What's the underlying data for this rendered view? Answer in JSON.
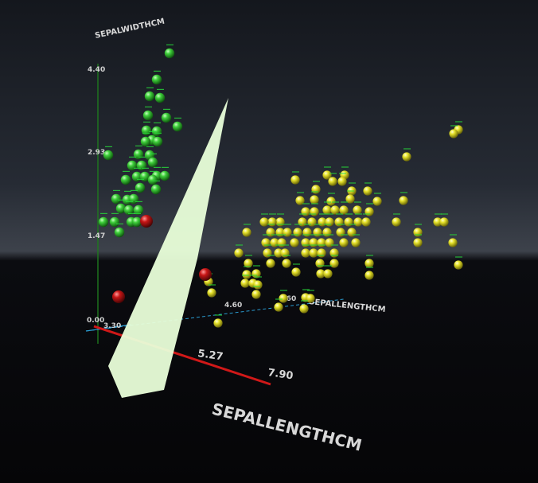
{
  "chart_data": {
    "type": "scatter",
    "axes": {
      "y_label": "SEPALWIDTHCM",
      "y_ticks": [
        "0.00",
        "1.47",
        "2.93",
        "4.40"
      ],
      "x_label": "SEPALLENGTHCM",
      "x_ticks": [
        "5.27",
        "7.90"
      ],
      "z_label": "SEPALLENGTHCM",
      "z_ticks": [
        "3.30",
        "4.60",
        "6.60"
      ]
    },
    "colors": {
      "green": "#3ecf3a",
      "yellow": "#e6e22a",
      "red": "#c81616",
      "plane": "#e9ffd9",
      "axis_red": "#d01818",
      "axis_green": "#1e7a1e",
      "axis_blue": "#2a9bd0",
      "label_green": "#27d83a"
    },
    "series": [
      {
        "color": "green",
        "points": [
          [
            213,
            67
          ],
          [
            197,
            100
          ],
          [
            188,
            121
          ],
          [
            201,
            123
          ],
          [
            186,
            145
          ],
          [
            209,
            148
          ],
          [
            223,
            159
          ],
          [
            184,
            164
          ],
          [
            197,
            165
          ],
          [
            191,
            176
          ],
          [
            183,
            178
          ],
          [
            198,
            178
          ],
          [
            136,
            195
          ],
          [
            174,
            194
          ],
          [
            188,
            195
          ],
          [
            192,
            204
          ],
          [
            166,
            208
          ],
          [
            178,
            208
          ],
          [
            172,
            222
          ],
          [
            182,
            222
          ],
          [
            197,
            221
          ],
          [
            207,
            221
          ],
          [
            158,
            226
          ],
          [
            192,
            226
          ],
          [
            176,
            236
          ],
          [
            196,
            238
          ],
          [
            146,
            250
          ],
          [
            160,
            251
          ],
          [
            168,
            250
          ],
          [
            152,
            262
          ],
          [
            162,
            264
          ],
          [
            174,
            264
          ],
          [
            130,
            279
          ],
          [
            144,
            279
          ],
          [
            165,
            279
          ],
          [
            172,
            279
          ],
          [
            150,
            292
          ]
        ]
      },
      {
        "color": "yellow",
        "points": [
          [
            576,
            163
          ],
          [
            570,
            168
          ],
          [
            511,
            197
          ],
          [
            371,
            226
          ],
          [
            411,
            220
          ],
          [
            433,
            220
          ],
          [
            418,
            228
          ],
          [
            430,
            228
          ],
          [
            397,
            238
          ],
          [
            462,
            240
          ],
          [
            442,
            240
          ],
          [
            377,
            252
          ],
          [
            416,
            253
          ],
          [
            440,
            250
          ],
          [
            474,
            253
          ],
          [
            507,
            252
          ],
          [
            395,
            251
          ],
          [
            411,
            264
          ],
          [
            421,
            264
          ],
          [
            432,
            264
          ],
          [
            449,
            264
          ],
          [
            384,
            266
          ],
          [
            395,
            266
          ],
          [
            464,
            266
          ],
          [
            352,
            279
          ],
          [
            342,
            279
          ],
          [
            332,
            279
          ],
          [
            380,
            279
          ],
          [
            392,
            279
          ],
          [
            405,
            279
          ],
          [
            414,
            279
          ],
          [
            426,
            279
          ],
          [
            438,
            279
          ],
          [
            450,
            279
          ],
          [
            460,
            279
          ],
          [
            498,
            279
          ],
          [
            550,
            279
          ],
          [
            558,
            279
          ],
          [
            310,
            292
          ],
          [
            340,
            292
          ],
          [
            352,
            292
          ],
          [
            361,
            292
          ],
          [
            374,
            292
          ],
          [
            386,
            292
          ],
          [
            399,
            292
          ],
          [
            411,
            292
          ],
          [
            428,
            292
          ],
          [
            442,
            292
          ],
          [
            525,
            292
          ],
          [
            334,
            305
          ],
          [
            345,
            305
          ],
          [
            354,
            305
          ],
          [
            370,
            305
          ],
          [
            384,
            305
          ],
          [
            394,
            305
          ],
          [
            404,
            305
          ],
          [
            414,
            305
          ],
          [
            432,
            305
          ],
          [
            447,
            305
          ],
          [
            525,
            305
          ],
          [
            569,
            305
          ],
          [
            300,
            318
          ],
          [
            336,
            318
          ],
          [
            350,
            318
          ],
          [
            358,
            318
          ],
          [
            384,
            318
          ],
          [
            394,
            318
          ],
          [
            404,
            318
          ],
          [
            420,
            318
          ],
          [
            312,
            331
          ],
          [
            340,
            331
          ],
          [
            360,
            331
          ],
          [
            402,
            331
          ],
          [
            420,
            331
          ],
          [
            464,
            331
          ],
          [
            576,
            333
          ],
          [
            322,
            344
          ],
          [
            310,
            345
          ],
          [
            372,
            342
          ],
          [
            403,
            344
          ],
          [
            412,
            344
          ],
          [
            464,
            346
          ],
          [
            262,
            354
          ],
          [
            308,
            356
          ],
          [
            318,
            356
          ],
          [
            324,
            358
          ],
          [
            266,
            368
          ],
          [
            322,
            370
          ],
          [
            356,
            375
          ],
          [
            384,
            374
          ],
          [
            390,
            375
          ],
          [
            350,
            386
          ],
          [
            382,
            388
          ],
          [
            274,
            406
          ]
        ]
      },
      {
        "color": "red",
        "points": [
          [
            184,
            278
          ],
          [
            258,
            345
          ],
          [
            149,
            373
          ]
        ]
      }
    ]
  }
}
